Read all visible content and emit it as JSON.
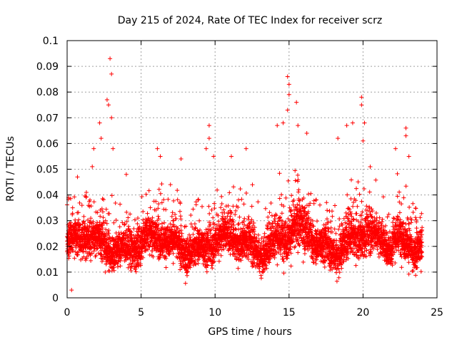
{
  "chart_data": {
    "type": "scatter",
    "title": "Day 215 of 2024, Rate Of TEC Index for receiver scrz",
    "xlabel": "GPS time / hours",
    "ylabel": "ROTI / TECUs",
    "xlim": [
      0,
      25
    ],
    "ylim": [
      0,
      0.1
    ],
    "xticks": [
      0,
      5,
      10,
      15,
      20,
      25
    ],
    "xtick_labels": [
      "0",
      "5",
      "10",
      "15",
      "20",
      "25"
    ],
    "yticks": [
      0,
      0.01,
      0.02,
      0.03,
      0.04,
      0.05,
      0.06,
      0.07,
      0.08,
      0.09,
      0.1
    ],
    "ytick_labels": [
      "0",
      "0.01",
      "0.02",
      "0.03",
      "0.04",
      "0.05",
      "0.06",
      "0.07",
      "0.08",
      "0.09",
      "0.1"
    ],
    "grid": true,
    "marker": "+",
    "series": [
      {
        "name": "ROTI",
        "color": "#ff0000",
        "x_range": [
          0,
          24
        ],
        "typical_range": [
          0.01,
          0.035
        ],
        "points": [
          [
            0.1,
            0.039
          ],
          [
            0.3,
            0.003
          ],
          [
            0.7,
            0.047
          ],
          [
            1.3,
            0.041
          ],
          [
            1.7,
            0.051
          ],
          [
            1.8,
            0.058
          ],
          [
            2.2,
            0.068
          ],
          [
            2.3,
            0.062
          ],
          [
            2.7,
            0.077
          ],
          [
            2.8,
            0.075
          ],
          [
            2.9,
            0.093
          ],
          [
            3.0,
            0.087
          ],
          [
            3.0,
            0.07
          ],
          [
            3.1,
            0.058
          ],
          [
            4.0,
            0.048
          ],
          [
            6.1,
            0.058
          ],
          [
            6.3,
            0.055
          ],
          [
            7.7,
            0.054
          ],
          [
            9.4,
            0.058
          ],
          [
            9.6,
            0.067
          ],
          [
            9.6,
            0.062
          ],
          [
            9.9,
            0.055
          ],
          [
            11.1,
            0.055
          ],
          [
            12.1,
            0.058
          ],
          [
            14.2,
            0.067
          ],
          [
            14.6,
            0.068
          ],
          [
            14.9,
            0.086
          ],
          [
            15.0,
            0.083
          ],
          [
            15.0,
            0.079
          ],
          [
            14.9,
            0.073
          ],
          [
            15.5,
            0.076
          ],
          [
            15.6,
            0.067
          ],
          [
            16.2,
            0.064
          ],
          [
            18.3,
            0.062
          ],
          [
            18.9,
            0.067
          ],
          [
            19.3,
            0.068
          ],
          [
            19.9,
            0.078
          ],
          [
            19.9,
            0.075
          ],
          [
            20.1,
            0.068
          ],
          [
            20.0,
            0.061
          ],
          [
            22.2,
            0.058
          ],
          [
            22.9,
            0.066
          ],
          [
            22.9,
            0.063
          ],
          [
            23.1,
            0.055
          ]
        ]
      }
    ]
  }
}
